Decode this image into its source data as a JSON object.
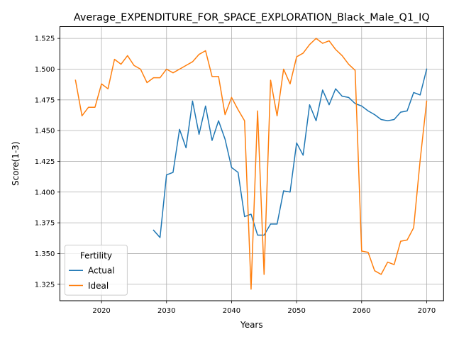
{
  "chart_data": {
    "type": "line",
    "title": "Average_EXPENDITURE_FOR_SPACE_EXPLORATION_Black_Male_Q1_IQ",
    "xlabel": "Years",
    "ylabel": "Score(1-3)",
    "xlim": [
      2013.6,
      2072.6
    ],
    "ylim": [
      1.3116,
      1.5346
    ],
    "x_ticks": [
      2020,
      2030,
      2040,
      2050,
      2060,
      2070
    ],
    "y_ticks": [
      1.325,
      1.35,
      1.375,
      1.4,
      1.425,
      1.45,
      1.475,
      1.5,
      1.525
    ],
    "x_tick_labels": [
      "2020",
      "2030",
      "2040",
      "2050",
      "2060",
      "2070"
    ],
    "y_tick_labels": [
      "1.325",
      "1.350",
      "1.375",
      "1.400",
      "1.425",
      "1.450",
      "1.475",
      "1.500",
      "1.525"
    ],
    "grid": true,
    "legend": {
      "title": "Fertility",
      "placement": "lower-left"
    },
    "series": [
      {
        "name": "Actual",
        "color": "#1f77b4",
        "x": [
          2028,
          2029,
          2030,
          2031,
          2032,
          2033,
          2034,
          2035,
          2036,
          2037,
          2038,
          2039,
          2040,
          2041,
          2042,
          2043,
          2044,
          2045,
          2046,
          2047,
          2048,
          2049,
          2050,
          2051,
          2052,
          2053,
          2054,
          2055,
          2056,
          2057,
          2058,
          2059,
          2060,
          2061,
          2062,
          2063,
          2064,
          2065,
          2066,
          2067,
          2068,
          2069,
          2070
        ],
        "y": [
          1.369,
          1.363,
          1.414,
          1.416,
          1.451,
          1.436,
          1.474,
          1.447,
          1.47,
          1.442,
          1.458,
          1.443,
          1.42,
          1.416,
          1.38,
          1.382,
          1.365,
          1.365,
          1.374,
          1.374,
          1.401,
          1.4,
          1.44,
          1.43,
          1.471,
          1.458,
          1.483,
          1.471,
          1.484,
          1.478,
          1.477,
          1.472,
          1.47,
          1.466,
          1.463,
          1.459,
          1.458,
          1.459,
          1.465,
          1.466,
          1.481,
          1.479,
          1.5
        ]
      },
      {
        "name": "Ideal",
        "color": "#ff7f0e",
        "x": [
          2016,
          2017,
          2018,
          2019,
          2020,
          2021,
          2022,
          2023,
          2024,
          2025,
          2026,
          2027,
          2028,
          2029,
          2030,
          2031,
          2032,
          2033,
          2034,
          2035,
          2036,
          2037,
          2038,
          2039,
          2040,
          2041,
          2042,
          2043,
          2044,
          2045,
          2046,
          2047,
          2048,
          2049,
          2050,
          2051,
          2052,
          2053,
          2054,
          2055,
          2056,
          2057,
          2058,
          2059,
          2060,
          2061,
          2062,
          2063,
          2064,
          2065,
          2066,
          2067,
          2068,
          2069,
          2070
        ],
        "y": [
          1.491,
          1.462,
          1.469,
          1.469,
          1.488,
          1.484,
          1.508,
          1.504,
          1.511,
          1.503,
          1.5,
          1.489,
          1.493,
          1.493,
          1.5,
          1.497,
          1.5,
          1.503,
          1.506,
          1.512,
          1.515,
          1.494,
          1.494,
          1.463,
          1.477,
          1.467,
          1.458,
          1.321,
          1.466,
          1.333,
          1.491,
          1.462,
          1.5,
          1.488,
          1.51,
          1.513,
          1.52,
          1.525,
          1.521,
          1.523,
          1.516,
          1.511,
          1.504,
          1.499,
          1.352,
          1.351,
          1.336,
          1.333,
          1.343,
          1.341,
          1.36,
          1.361,
          1.371,
          1.426,
          1.474
        ]
      }
    ]
  }
}
